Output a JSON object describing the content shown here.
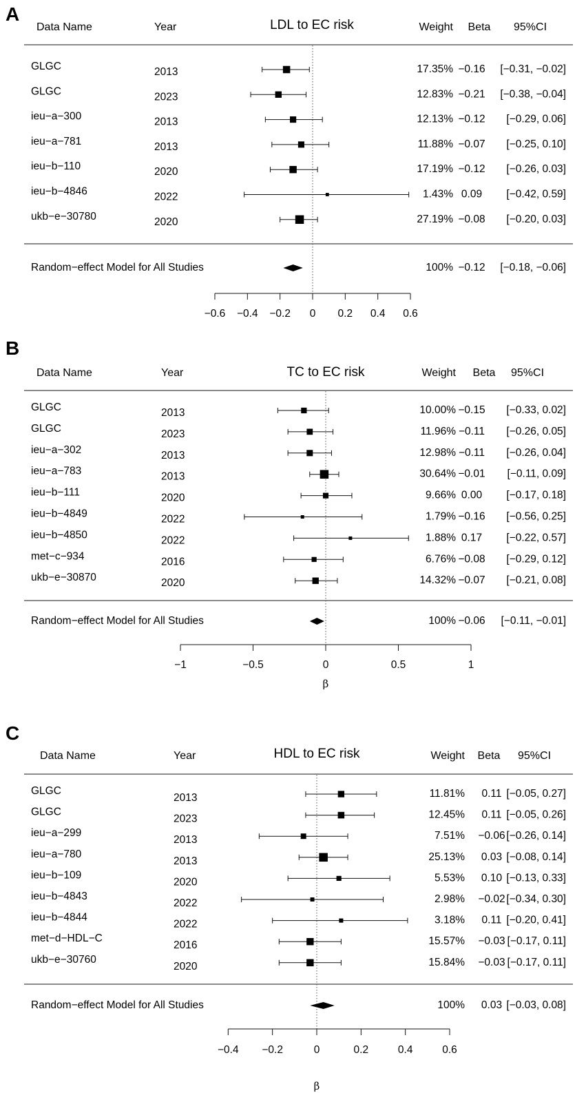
{
  "chart_data": [
    {
      "type": "forest",
      "panel_label": "A",
      "title": "LDL to EC risk",
      "columns": {
        "name": "Data Name",
        "year": "Year",
        "weight": "Weight",
        "beta": "Beta",
        "ci": "95%CI"
      },
      "xlabel": "",
      "xlim": [
        -0.6,
        0.6
      ],
      "ticks": [
        {
          "v": -0.6,
          "t": "−0.6"
        },
        {
          "v": -0.4,
          "t": "−0.4"
        },
        {
          "v": -0.2,
          "t": "−0.2"
        },
        {
          "v": 0,
          "t": "0"
        },
        {
          "v": 0.2,
          "t": "0.2"
        },
        {
          "v": 0.4,
          "t": "0.4"
        },
        {
          "v": 0.6,
          "t": "0.6"
        }
      ],
      "studies": [
        {
          "name": "GLGC",
          "year": "2013",
          "weight": "17.35%",
          "beta": "−0.16",
          "ci": "[−0.31, −0.02]",
          "est": -0.16,
          "lo": -0.31,
          "hi": -0.02,
          "w": 17.35
        },
        {
          "name": "GLGC",
          "year": "2023",
          "weight": "12.83%",
          "beta": "−0.21",
          "ci": "[−0.38, −0.04]",
          "est": -0.21,
          "lo": -0.38,
          "hi": -0.04,
          "w": 12.83
        },
        {
          "name": "ieu−a−300",
          "year": "2013",
          "weight": "12.13%",
          "beta": "−0.12",
          "ci": "[−0.29,  0.06]",
          "est": -0.12,
          "lo": -0.29,
          "hi": 0.06,
          "w": 12.13
        },
        {
          "name": "ieu−a−781",
          "year": "2013",
          "weight": "11.88%",
          "beta": "−0.07",
          "ci": "[−0.25,  0.10]",
          "est": -0.07,
          "lo": -0.25,
          "hi": 0.1,
          "w": 11.88
        },
        {
          "name": "ieu−b−110",
          "year": "2020",
          "weight": "17.19%",
          "beta": "−0.12",
          "ci": "[−0.26,  0.03]",
          "est": -0.12,
          "lo": -0.26,
          "hi": 0.03,
          "w": 17.19
        },
        {
          "name": "ieu−b−4846",
          "year": "2022",
          "weight": "1.43%",
          "beta": "0.09",
          "ci": "[−0.42,  0.59]",
          "est": 0.09,
          "lo": -0.42,
          "hi": 0.59,
          "w": 1.43
        },
        {
          "name": "ukb−e−30780",
          "year": "2020",
          "weight": "27.19%",
          "beta": "−0.08",
          "ci": "[−0.20,  0.03]",
          "est": -0.08,
          "lo": -0.2,
          "hi": 0.03,
          "w": 27.19
        }
      ],
      "summary": {
        "label": "Random−effect Model for All Studies",
        "weight": "100%",
        "beta": "−0.12",
        "ci": "[−0.18, −0.06]",
        "est": -0.12,
        "lo": -0.18,
        "hi": -0.06
      }
    },
    {
      "type": "forest",
      "panel_label": "B",
      "title": "TC to EC risk",
      "columns": {
        "name": "Data Name",
        "year": "Year",
        "weight": "Weight",
        "beta": "Beta",
        "ci": "95%CI"
      },
      "xlabel": "β",
      "xlim": [
        -1,
        1
      ],
      "ticks": [
        {
          "v": -1,
          "t": "−1"
        },
        {
          "v": -0.5,
          "t": "−0.5"
        },
        {
          "v": 0,
          "t": "0"
        },
        {
          "v": 0.5,
          "t": "0.5"
        },
        {
          "v": 1,
          "t": "1"
        }
      ],
      "studies": [
        {
          "name": "GLGC",
          "year": "2013",
          "weight": "10.00%",
          "beta": "−0.15",
          "ci": "[−0.33,  0.02]",
          "est": -0.15,
          "lo": -0.33,
          "hi": 0.02,
          "w": 10.0
        },
        {
          "name": "GLGC",
          "year": "2023",
          "weight": "11.96%",
          "beta": "−0.11",
          "ci": "[−0.26,  0.05]",
          "est": -0.11,
          "lo": -0.26,
          "hi": 0.05,
          "w": 11.96
        },
        {
          "name": "ieu−a−302",
          "year": "2013",
          "weight": "12.98%",
          "beta": "−0.11",
          "ci": "[−0.26,  0.04]",
          "est": -0.11,
          "lo": -0.26,
          "hi": 0.04,
          "w": 12.98
        },
        {
          "name": "ieu−a−783",
          "year": "2013",
          "weight": "30.64%",
          "beta": "−0.01",
          "ci": "[−0.11,  0.09]",
          "est": -0.01,
          "lo": -0.11,
          "hi": 0.09,
          "w": 30.64
        },
        {
          "name": "ieu−b−111",
          "year": "2020",
          "weight": "9.66%",
          "beta": "0.00",
          "ci": "[−0.17,  0.18]",
          "est": 0.0,
          "lo": -0.17,
          "hi": 0.18,
          "w": 9.66
        },
        {
          "name": "ieu−b−4849",
          "year": "2022",
          "weight": "1.79%",
          "beta": "−0.16",
          "ci": "[−0.56,  0.25]",
          "est": -0.16,
          "lo": -0.56,
          "hi": 0.25,
          "w": 1.79
        },
        {
          "name": "ieu−b−4850",
          "year": "2022",
          "weight": "1.88%",
          "beta": "0.17",
          "ci": "[−0.22,  0.57]",
          "est": 0.17,
          "lo": -0.22,
          "hi": 0.57,
          "w": 1.88
        },
        {
          "name": "met−c−934",
          "year": "2016",
          "weight": "6.76%",
          "beta": "−0.08",
          "ci": "[−0.29,  0.12]",
          "est": -0.08,
          "lo": -0.29,
          "hi": 0.12,
          "w": 6.76
        },
        {
          "name": "ukb−e−30870",
          "year": "2020",
          "weight": "14.32%",
          "beta": "−0.07",
          "ci": "[−0.21,  0.08]",
          "est": -0.07,
          "lo": -0.21,
          "hi": 0.08,
          "w": 14.32
        }
      ],
      "summary": {
        "label": "Random−effect Model for All Studies",
        "weight": "100%",
        "beta": "−0.06",
        "ci": "[−0.11, −0.01]",
        "est": -0.06,
        "lo": -0.11,
        "hi": -0.01
      }
    },
    {
      "type": "forest",
      "panel_label": "C",
      "title": "HDL to EC risk",
      "columns": {
        "name": "Data Name",
        "year": "Year",
        "weight": "Weight",
        "beta": "Beta",
        "ci": "95%CI"
      },
      "xlabel": "β",
      "xlim": [
        -0.4,
        0.6
      ],
      "ticks": [
        {
          "v": -0.4,
          "t": "−0.4"
        },
        {
          "v": -0.2,
          "t": "−0.2"
        },
        {
          "v": 0,
          "t": "0"
        },
        {
          "v": 0.2,
          "t": "0.2"
        },
        {
          "v": 0.4,
          "t": "0.4"
        },
        {
          "v": 0.6,
          "t": "0.6"
        }
      ],
      "studies": [
        {
          "name": "GLGC",
          "year": "2013",
          "weight": "11.81%",
          "beta": "0.11",
          "ci": "[−0.05, 0.27]",
          "est": 0.11,
          "lo": -0.05,
          "hi": 0.27,
          "w": 11.81
        },
        {
          "name": "GLGC",
          "year": "2023",
          "weight": "12.45%",
          "beta": "0.11",
          "ci": "[−0.05, 0.26]",
          "est": 0.11,
          "lo": -0.05,
          "hi": 0.26,
          "w": 12.45
        },
        {
          "name": "ieu−a−299",
          "year": "2013",
          "weight": "7.51%",
          "beta": "−0.06",
          "ci": "[−0.26, 0.14]",
          "est": -0.06,
          "lo": -0.26,
          "hi": 0.14,
          "w": 7.51
        },
        {
          "name": "ieu−a−780",
          "year": "2013",
          "weight": "25.13%",
          "beta": "0.03",
          "ci": "[−0.08, 0.14]",
          "est": 0.03,
          "lo": -0.08,
          "hi": 0.14,
          "w": 25.13
        },
        {
          "name": "ieu−b−109",
          "year": "2020",
          "weight": "5.53%",
          "beta": "0.10",
          "ci": "[−0.13, 0.33]",
          "est": 0.1,
          "lo": -0.13,
          "hi": 0.33,
          "w": 5.53
        },
        {
          "name": "ieu−b−4843",
          "year": "2022",
          "weight": "2.98%",
          "beta": "−0.02",
          "ci": "[−0.34, 0.30]",
          "est": -0.02,
          "lo": -0.34,
          "hi": 0.3,
          "w": 2.98
        },
        {
          "name": "ieu−b−4844",
          "year": "2022",
          "weight": "3.18%",
          "beta": "0.11",
          "ci": "[−0.20, 0.41]",
          "est": 0.11,
          "lo": -0.2,
          "hi": 0.41,
          "w": 3.18
        },
        {
          "name": "met−d−HDL−C",
          "year": "2016",
          "weight": "15.57%",
          "beta": "−0.03",
          "ci": "[−0.17, 0.11]",
          "est": -0.03,
          "lo": -0.17,
          "hi": 0.11,
          "w": 15.57
        },
        {
          "name": "ukb−e−30760",
          "year": "2020",
          "weight": "15.84%",
          "beta": "−0.03",
          "ci": "[−0.17, 0.11]",
          "est": -0.03,
          "lo": -0.17,
          "hi": 0.11,
          "w": 15.84
        }
      ],
      "summary": {
        "label": "Random−effect Model for All Studies",
        "weight": "100%",
        "beta": "0.03",
        "ci": "[−0.03, 0.08]",
        "est": 0.03,
        "lo": -0.03,
        "hi": 0.08
      }
    }
  ]
}
